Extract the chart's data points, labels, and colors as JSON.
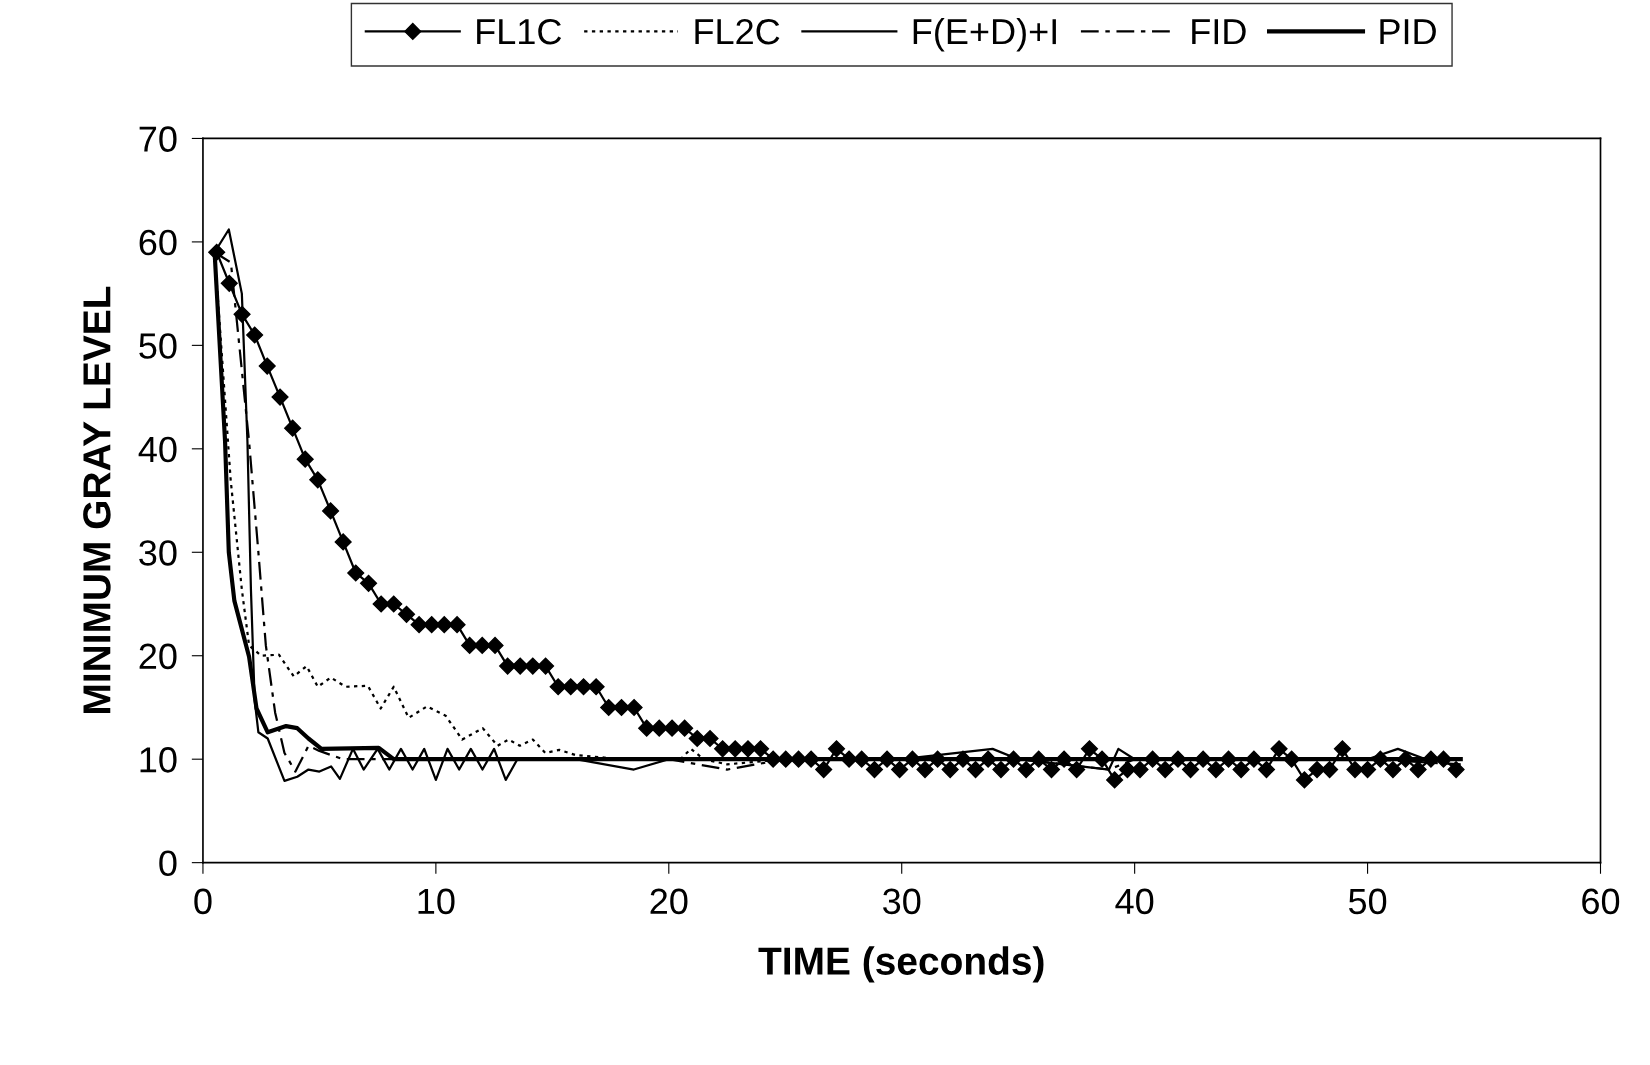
{
  "chart_data": {
    "type": "line",
    "xlabel": "TIME (seconds)",
    "ylabel": "MINIMUM GRAY LEVEL",
    "xlim": [
      0,
      60
    ],
    "ylim": [
      0,
      70
    ],
    "xticks": [
      0,
      10,
      20,
      30,
      40,
      50,
      60
    ],
    "yticks": [
      0,
      10,
      20,
      30,
      40,
      50,
      60,
      70
    ],
    "grid": false,
    "legend": "top",
    "series": [
      {
        "name": "FL1C",
        "color": "#000000",
        "marker": "diamond",
        "line_style": "solid",
        "x": [
          0.59,
          1.13,
          1.68,
          2.22,
          2.76,
          3.31,
          3.85,
          4.39,
          4.93,
          5.48,
          6.02,
          6.56,
          7.11,
          7.65,
          8.19,
          8.74,
          9.28,
          9.82,
          10.36,
          10.91,
          11.45,
          11.99,
          12.54,
          13.08,
          13.62,
          14.16,
          14.71,
          15.25,
          15.79,
          16.34,
          16.88,
          17.42,
          17.97,
          18.51,
          19.05,
          19.59,
          20.14,
          20.68,
          21.22,
          21.77,
          22.31,
          22.85,
          23.4,
          23.94,
          24.48,
          25.02,
          25.57,
          26.11,
          26.65,
          27.2,
          27.74,
          28.28,
          28.83,
          29.37,
          29.91,
          30.46,
          31.0,
          31.54,
          32.08,
          32.63,
          33.17,
          33.71,
          34.26,
          34.8,
          35.34,
          35.88,
          36.43,
          36.97,
          37.51,
          38.06,
          38.6,
          39.14,
          39.69,
          40.23,
          40.77,
          41.31,
          41.86,
          42.4,
          42.94,
          43.49,
          44.03,
          44.57,
          45.12,
          45.66,
          46.2,
          46.74,
          47.29,
          47.83,
          48.37,
          48.92,
          49.46,
          50.0,
          50.55,
          51.09,
          51.63,
          52.17,
          52.72,
          53.26,
          53.8
        ],
        "values": [
          59,
          56,
          53,
          51,
          48,
          45,
          42,
          39,
          37,
          34,
          31,
          28,
          27,
          25,
          25,
          24,
          23,
          23,
          23,
          23,
          21,
          21,
          21,
          19,
          19,
          19,
          19,
          17,
          17,
          17,
          17,
          15,
          15,
          15,
          13,
          13,
          13,
          13,
          12,
          12,
          11,
          11,
          11,
          11,
          10,
          10,
          10,
          10,
          9,
          11,
          10,
          10,
          9,
          10,
          9,
          10,
          9,
          10,
          9,
          10,
          9,
          10,
          9,
          10,
          9,
          10,
          9,
          10,
          9,
          11,
          10,
          8,
          9,
          9,
          10,
          9,
          10,
          9,
          10,
          9,
          10,
          9,
          10,
          9,
          11,
          10,
          8,
          9,
          9,
          11,
          9,
          9,
          10,
          9,
          10,
          9,
          10,
          10,
          9
        ]
      },
      {
        "name": "FL2C",
        "color": "#000000",
        "marker": "none",
        "line_style": "dotted",
        "x": [
          0.5,
          1.19,
          1.67,
          1.98,
          2.5,
          3.26,
          3.9,
          4.45,
          4.93,
          5.49,
          6.12,
          7.08,
          7.63,
          8.19,
          8.83,
          9.62,
          10.42,
          11.13,
          12.01,
          12.65,
          13.12,
          13.6,
          14.16,
          14.7,
          15.3,
          16.0,
          18.0,
          20.5,
          20.95,
          21.5,
          22.5,
          25,
          30,
          35,
          40,
          45,
          50,
          54
        ],
        "values": [
          59,
          37,
          26.4,
          21,
          20,
          20.1,
          18,
          19,
          17,
          17.9,
          17,
          17.1,
          14.9,
          17,
          14,
          15.1,
          14.2,
          11.9,
          13,
          11.3,
          11.9,
          11.3,
          11.9,
          10.6,
          10.9,
          10.4,
          10,
          10,
          11,
          10,
          9.5,
          10,
          10,
          10,
          10,
          10,
          10,
          10
        ]
      },
      {
        "name": "F(E+D)+I",
        "color": "#000000",
        "marker": "none",
        "line_style": "solid",
        "x": [
          0.5,
          1.11,
          1.67,
          1.91,
          2.06,
          2.22,
          2.38,
          2.78,
          3.5,
          4.05,
          4.53,
          5.0,
          5.5,
          5.88,
          6.44,
          6.9,
          7.5,
          8.0,
          8.5,
          9.0,
          9.5,
          10.0,
          10.5,
          11.0,
          11.5,
          12.0,
          12.5,
          13.0,
          13.5,
          14.0,
          16,
          18.5,
          20,
          30,
          33.9,
          35,
          38.9,
          39.3,
          40,
          45,
          50,
          51.3,
          52.5,
          54
        ],
        "values": [
          59,
          61.2,
          55,
          40.7,
          26.4,
          15.7,
          12.6,
          12,
          7.9,
          8.3,
          9,
          8.8,
          9.3,
          8.1,
          11,
          9,
          11,
          9,
          11,
          9,
          11,
          8,
          11,
          9,
          11,
          9,
          11,
          8,
          10,
          10,
          10,
          9,
          10,
          10,
          11,
          10,
          9,
          11,
          10,
          10,
          10,
          11,
          10,
          10
        ]
      },
      {
        "name": "FID",
        "color": "#000000",
        "marker": "none",
        "line_style": "dashdot",
        "x": [
          0.5,
          1.2,
          1.98,
          2.38,
          2.7,
          3.1,
          3.5,
          3.97,
          4.53,
          5.0,
          6,
          8,
          10,
          12,
          15,
          20,
          22.5,
          25,
          30,
          35,
          38.9,
          40,
          45,
          50,
          54
        ],
        "values": [
          59,
          58,
          40.7,
          30,
          21,
          14.5,
          10.6,
          8.8,
          11.3,
          10.8,
          10,
          10,
          10,
          10,
          10,
          10,
          9,
          10,
          10,
          10,
          9,
          10,
          10,
          10,
          9.5
        ]
      },
      {
        "name": "PID",
        "color": "#000000",
        "marker": "none",
        "line_style": "solid",
        "x": [
          0.5,
          0.95,
          1.11,
          1.35,
          1.98,
          2.3,
          2.78,
          3.57,
          4.05,
          4.53,
          5.09,
          7.55,
          8.19,
          10,
          20,
          30,
          40,
          50,
          54
        ],
        "values": [
          59,
          40.7,
          30,
          25.3,
          19.9,
          14.9,
          12.6,
          13.2,
          13,
          12,
          11,
          11.1,
          10,
          10,
          10,
          10,
          10,
          10,
          10
        ]
      }
    ]
  }
}
